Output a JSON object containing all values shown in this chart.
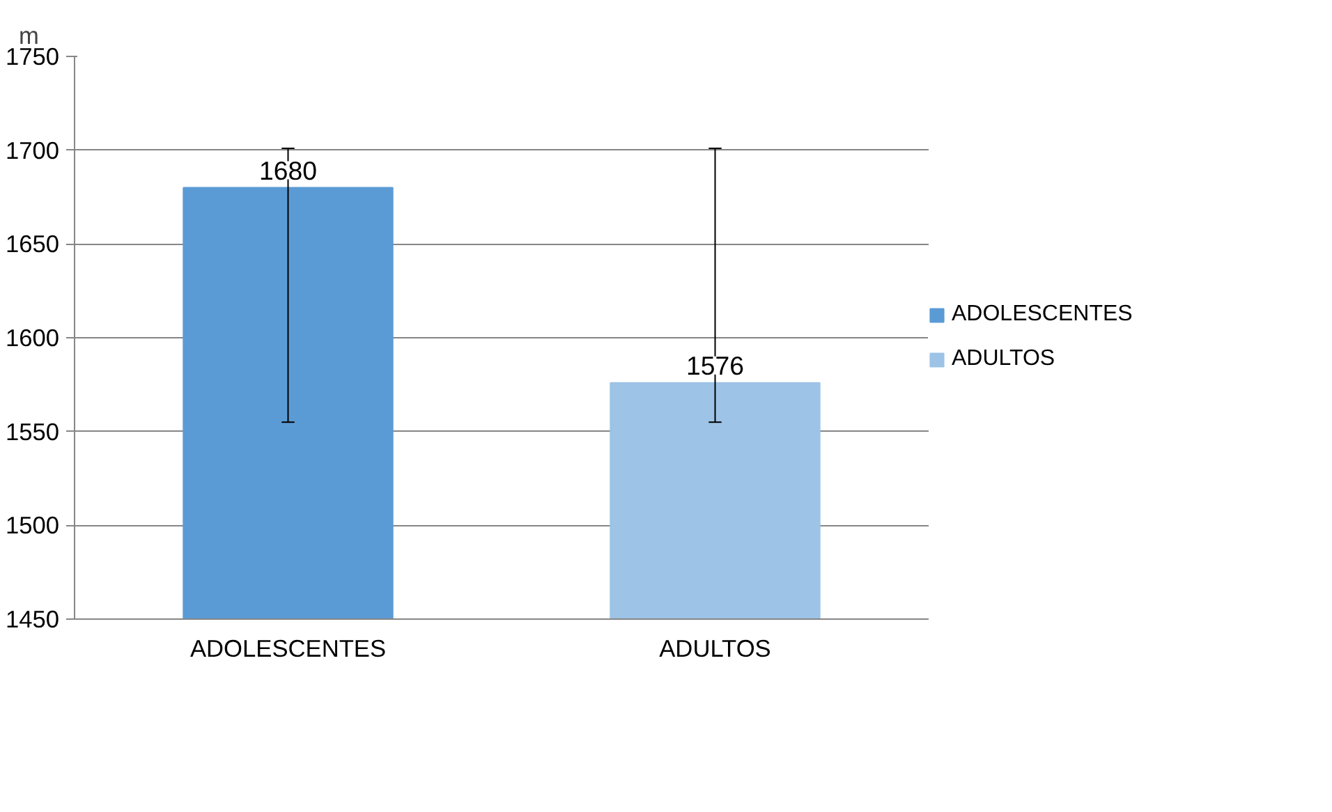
{
  "chart_data": {
    "type": "bar",
    "ylabel": "m",
    "categories": [
      "ADOLESCENTES",
      "ADULTOS"
    ],
    "series": [
      {
        "name": "ADOLESCENTES",
        "color": "#5b9bd5",
        "values": [
          1680,
          null
        ],
        "errors": [
          [
            1555,
            1701
          ],
          null
        ]
      },
      {
        "name": "ADULTOS",
        "color": "#9dc3e6",
        "values": [
          null,
          1576
        ],
        "errors": [
          null,
          [
            1555,
            1701
          ]
        ]
      }
    ],
    "ylim": [
      1450,
      1750
    ],
    "yticks": [
      1450,
      1500,
      1550,
      1600,
      1650,
      1700,
      1750
    ],
    "grid": "y",
    "legend": "right",
    "data_labels": true
  }
}
